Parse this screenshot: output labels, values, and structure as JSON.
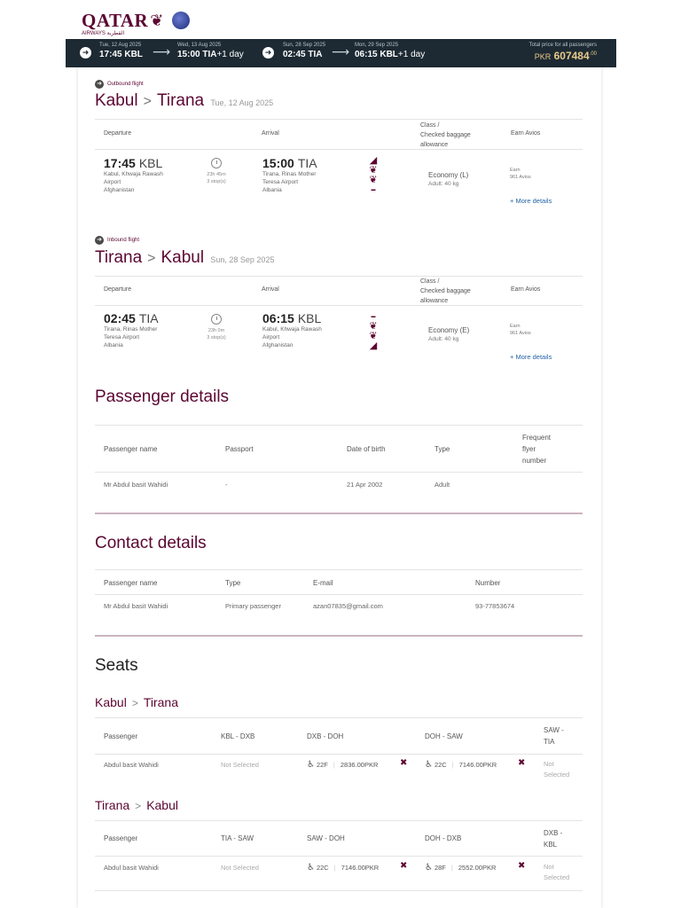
{
  "header": {
    "logo": "QATAR",
    "logo_sub": "AIRWAYS القطرية",
    "oryx_icon": "oryx-icon",
    "alliance_icon": "oneworld-icon"
  },
  "summary": {
    "out_dep_date": "Tue, 12 Aug 2025",
    "out_dep_time": "17:45 KBL",
    "out_arr_date": "Wed, 13 Aug 2025",
    "out_arr_time": "15:00 TIA",
    "out_arr_plus": "+1 day",
    "in_dep_date": "Sun, 28 Sep 2025",
    "in_dep_time": "02:45 TIA",
    "in_arr_date": "Mon, 29 Sep 2025",
    "in_arr_time": "06:15 KBL",
    "in_arr_plus": "+1 day",
    "total_label": "Total price for all passengers",
    "currency": "PKR",
    "total": "607484",
    "decimals": ".00"
  },
  "outbound": {
    "label": "Outbound flight",
    "from": "Kabul",
    "to": "Tirana",
    "date": "Tue, 12 Aug 2025",
    "col_departure": "Departure",
    "col_arrival": "Arrival",
    "col_class_1": "Class /",
    "col_class_2": "Checked baggage",
    "col_class_3": "allowance",
    "col_earn": "Earn Avios",
    "dep_time": "17:45",
    "dep_code": "KBL",
    "dep_addr_1": "Kabul, Khwaja Rawash",
    "dep_addr_2": "Airport",
    "dep_addr_3": "Afghanistan",
    "duration": "23h 45m",
    "stops": "3 stop(s)",
    "arr_time": "15:00",
    "arr_code": "TIA",
    "arr_addr_1": "Tirana, Rinas Mother",
    "arr_addr_2": "Teresa Airport",
    "arr_addr_3": "Albania",
    "cabin": "Economy (L)",
    "bag": "Adult: 40 kg",
    "earn_1": "Earn",
    "earn_2": "961 Avios",
    "more": "+ More details"
  },
  "inbound": {
    "label": "Inbound flight",
    "from": "Tirana",
    "to": "Kabul",
    "date": "Sun, 28 Sep 2025",
    "col_departure": "Departure",
    "col_arrival": "Arrival",
    "col_class_1": "Class /",
    "col_class_2": "Checked baggage",
    "col_class_3": "allowance",
    "col_earn": "Earn Avios",
    "dep_time": "02:45",
    "dep_code": "TIA",
    "dep_addr_1": "Tirana, Rinas Mother",
    "dep_addr_2": "Teresa Airport",
    "dep_addr_3": "Albania",
    "duration": "23h 0m",
    "stops": "3 stop(s)",
    "arr_time": "06:15",
    "arr_code": "KBL",
    "arr_addr_1": "Kabul, Khwaja Rawash",
    "arr_addr_2": "Airport",
    "arr_addr_3": "Afghanistan",
    "cabin": "Economy (E)",
    "bag": "Adult: 40 kg",
    "earn_1": "Earn",
    "earn_2": "961 Avios",
    "more": "+ More details"
  },
  "passengers": {
    "title": "Passenger details",
    "col_name": "Passenger name",
    "col_passport": "Passport",
    "col_dob": "Date of birth",
    "col_type": "Type",
    "col_ff_1": "Frequent",
    "col_ff_2": "flyer",
    "col_ff_3": "number",
    "rows": [
      {
        "name": "Mr Abdul basit Wahidi",
        "passport": "-",
        "dob": "21 Apr 2002",
        "type": "Adult"
      }
    ]
  },
  "contact": {
    "title": "Contact details",
    "col_name": "Passenger name",
    "col_type": "Type",
    "col_email": "E-mail",
    "col_number": "Number",
    "rows": [
      {
        "name": "Mr Abdul basit Wahidi",
        "type": "Primary passenger",
        "email": "azan07835@gmail.com",
        "number": "93-77853674"
      }
    ]
  },
  "seats": {
    "title": "Seats",
    "out": {
      "from": "Kabul",
      "to": "Tirana",
      "col_passenger": "Passenger",
      "seg1": "KBL - DXB",
      "seg2": "DXB - DOH",
      "seg3": "DOH - SAW",
      "seg4_1": "SAW -",
      "seg4_2": "TIA",
      "passenger": "Abdul basit Wahidi",
      "seg1_val": "Not Selected",
      "seg2_seat": "22F",
      "seg2_price": "2836.00PKR",
      "seg3_seat": "22C",
      "seg3_price": "7146.00PKR",
      "seg4_1v": "Not",
      "seg4_2v": "Selected"
    },
    "in": {
      "from": "Tirana",
      "to": "Kabul",
      "col_passenger": "Passenger",
      "seg1": "TIA - SAW",
      "seg2": "SAW - DOH",
      "seg3": "DOH - DXB",
      "seg4_1": "DXB -",
      "seg4_2": "KBL",
      "passenger": "Abdul basit Wahidi",
      "seg1_val": "Not Selected",
      "seg2_seat": "22C",
      "seg2_price": "7146.00PKR",
      "seg3_seat": "28F",
      "seg3_price": "2552.00PKR",
      "seg4_1v": "Not",
      "seg4_2v": "Selected"
    }
  },
  "colors": {
    "brand": "#5c0632",
    "bar": "#1d2a33",
    "price": "#e8c98a",
    "link": "#2563a8"
  }
}
